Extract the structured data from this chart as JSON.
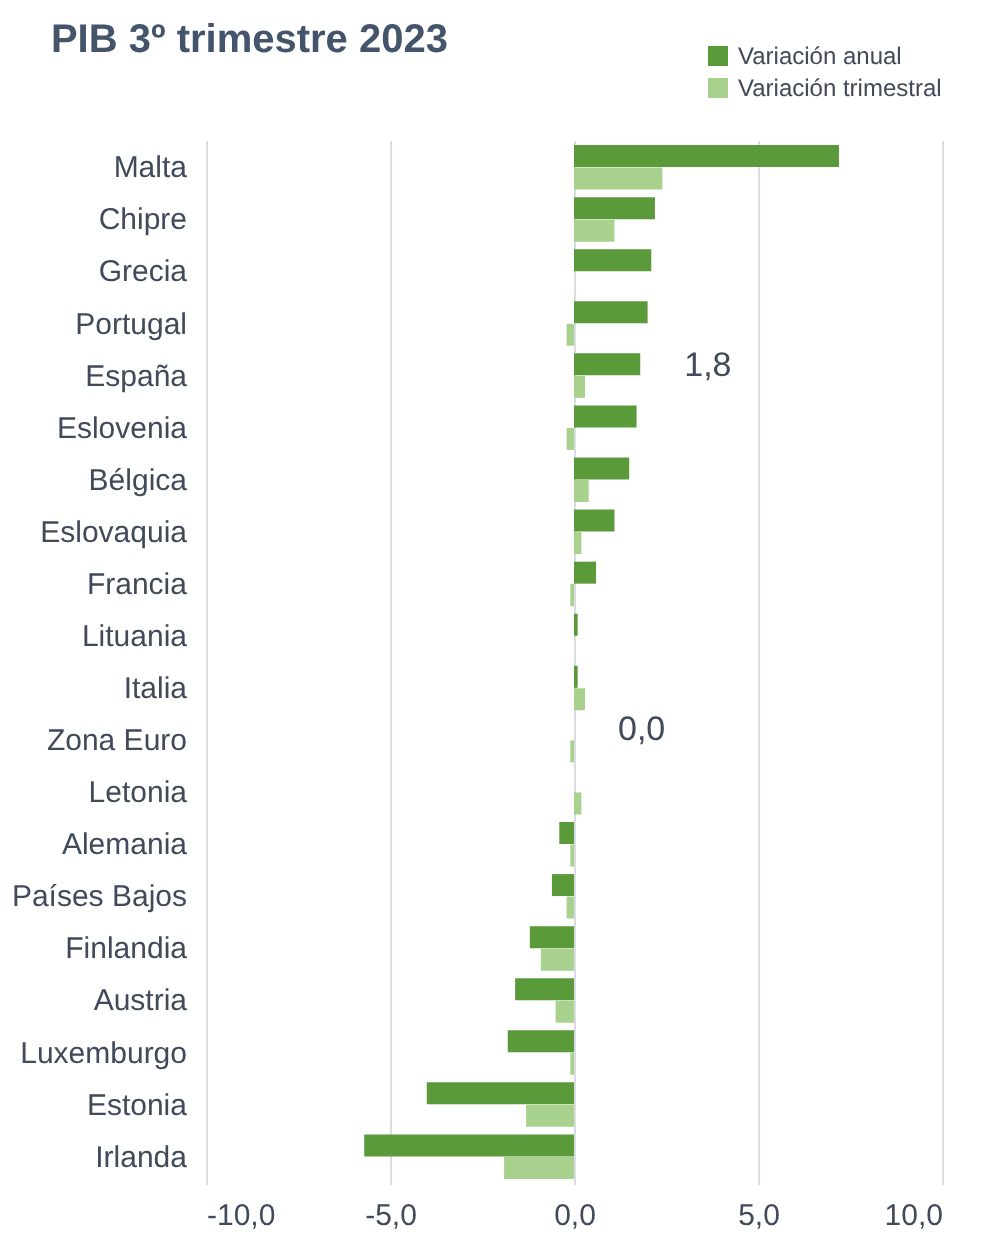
{
  "chart_data": {
    "type": "bar",
    "orientation": "horizontal",
    "title": "PIB 3º trimestre 2023",
    "categories": [
      "Malta",
      "Chipre",
      "Grecia",
      "Portugal",
      "España",
      "Eslovenia",
      "Bélgica",
      "Eslovaquia",
      "Francia",
      "Lituania",
      "Italia",
      "Zona Euro",
      "Letonia",
      "Alemania",
      "Países Bajos",
      "Finlandia",
      "Austria",
      "Luxemburgo",
      "Estonia",
      "Irlanda"
    ],
    "series": [
      {
        "name": "Variación anual",
        "color": "#5b9a3a",
        "values": [
          7.2,
          2.2,
          2.1,
          2.0,
          1.8,
          1.7,
          1.5,
          1.1,
          0.6,
          0.1,
          0.1,
          0.0,
          0.0,
          -0.4,
          -0.6,
          -1.2,
          -1.6,
          -1.8,
          -4.0,
          -5.7
        ],
        "value_labels": [
          null,
          null,
          null,
          null,
          "1,8",
          null,
          null,
          null,
          null,
          null,
          null,
          "0,0",
          null,
          null,
          null,
          null,
          null,
          null,
          null,
          null
        ]
      },
      {
        "name": "Variación trimestral",
        "color": "#a9d18e",
        "values": [
          2.4,
          1.1,
          0.0,
          -0.2,
          0.3,
          -0.2,
          0.4,
          0.2,
          -0.1,
          0.0,
          0.3,
          -0.1,
          0.2,
          -0.1,
          -0.2,
          -0.9,
          -0.5,
          -0.1,
          -1.3,
          -1.9
        ]
      }
    ],
    "xlim": [
      -10,
      10
    ],
    "xticks": [
      {
        "value": -10,
        "label": "-10,0"
      },
      {
        "value": -5,
        "label": "-5,0"
      },
      {
        "value": 0,
        "label": "0,0"
      },
      {
        "value": 5,
        "label": "5,0"
      },
      {
        "value": 10,
        "label": "10,0"
      }
    ],
    "grid": "x",
    "legend": "top right"
  }
}
